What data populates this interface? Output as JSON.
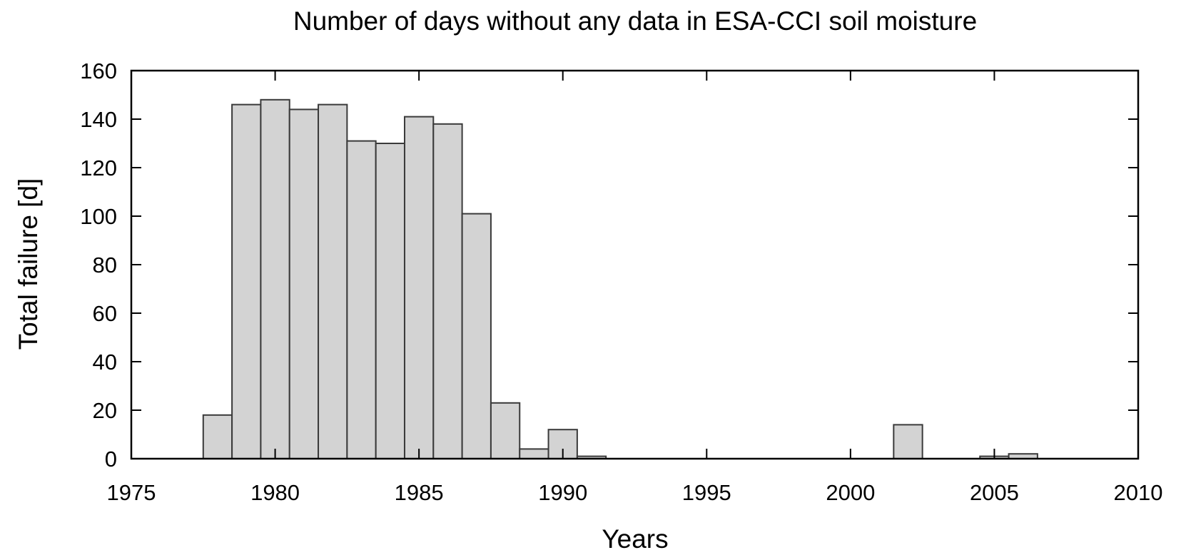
{
  "chart_data": {
    "type": "bar",
    "title": "Number of days without any data in ESA-CCI soil moisture",
    "xlabel": "Years",
    "ylabel": "Total failure [d]",
    "xlim": [
      1975,
      2010
    ],
    "ylim": [
      0,
      160
    ],
    "xticks": [
      1975,
      1980,
      1985,
      1990,
      1995,
      2000,
      2005,
      2010
    ],
    "yticks": [
      0,
      20,
      40,
      60,
      80,
      100,
      120,
      140,
      160
    ],
    "grid": false,
    "bar_width_years": 1,
    "series": [
      {
        "x": [
          1978,
          1979,
          1980,
          1981,
          1982,
          1983,
          1984,
          1985,
          1986,
          1987,
          1988,
          1989,
          1990,
          1991,
          1992,
          1993,
          1994,
          1995,
          1996,
          1997,
          1998,
          1999,
          2000,
          2001,
          2002,
          2003,
          2004,
          2005,
          2006,
          2007,
          2008,
          2009
        ],
        "values": [
          18,
          146,
          148,
          144,
          146,
          131,
          130,
          141,
          138,
          101,
          23,
          4,
          12,
          1,
          0,
          0,
          0,
          0,
          0,
          0,
          0,
          0,
          0,
          0,
          14,
          0,
          0,
          1,
          2,
          0,
          0,
          0
        ]
      }
    ]
  }
}
